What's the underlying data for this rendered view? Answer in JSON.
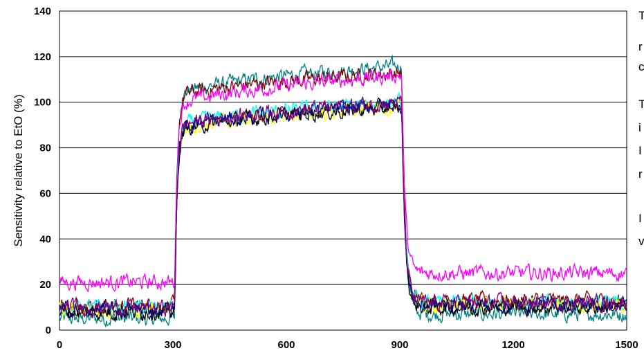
{
  "chart_data": {
    "type": "line",
    "ylabel": "Sensitivity relative to EtO (%)",
    "xlim": [
      0,
      1500
    ],
    "ylim": [
      0,
      140
    ],
    "xticks": [
      0,
      300,
      600,
      900,
      1200,
      1500
    ],
    "xtick_labels": [
      "0",
      "300",
      "600",
      "900",
      "1200",
      "1500"
    ],
    "yticks": [
      0,
      20,
      40,
      60,
      80,
      100,
      120,
      140
    ],
    "ytick_labels": [
      "0",
      "20",
      "40",
      "60",
      "80",
      "100",
      "120",
      "140"
    ],
    "grid": "horizontal",
    "legend": "none",
    "step_on": 305,
    "step_off": 905,
    "series": [
      {
        "color": "#008080",
        "baseline": 5,
        "plateau_start": 103,
        "plateau_end": 116
      },
      {
        "color": "#800000",
        "baseline": 11,
        "plateau_start": 102,
        "plateau_end": 113
      },
      {
        "color": "#FF00FF",
        "baseline": 21,
        "plateau_start": 98,
        "plateau_end": 112,
        "tail": 25
      },
      {
        "color": "#00FFFF",
        "baseline": 10,
        "plateau_start": 89,
        "plateau_end": 100
      },
      {
        "color": "#FFFF00",
        "baseline": 9,
        "plateau_start": 87,
        "plateau_end": 98
      },
      {
        "color": "#000000",
        "baseline": 8,
        "plateau_start": 87,
        "plateau_end": 98
      },
      {
        "color": "#000080",
        "baseline": 9,
        "plateau_start": 88,
        "plateau_end": 99
      },
      {
        "color": "#800080",
        "baseline": 10,
        "plateau_start": 89,
        "plateau_end": 100
      }
    ],
    "annotation_text": [
      "T",
      "r",
      "c",
      "T",
      "i",
      "I",
      "r",
      "I",
      "v"
    ]
  }
}
